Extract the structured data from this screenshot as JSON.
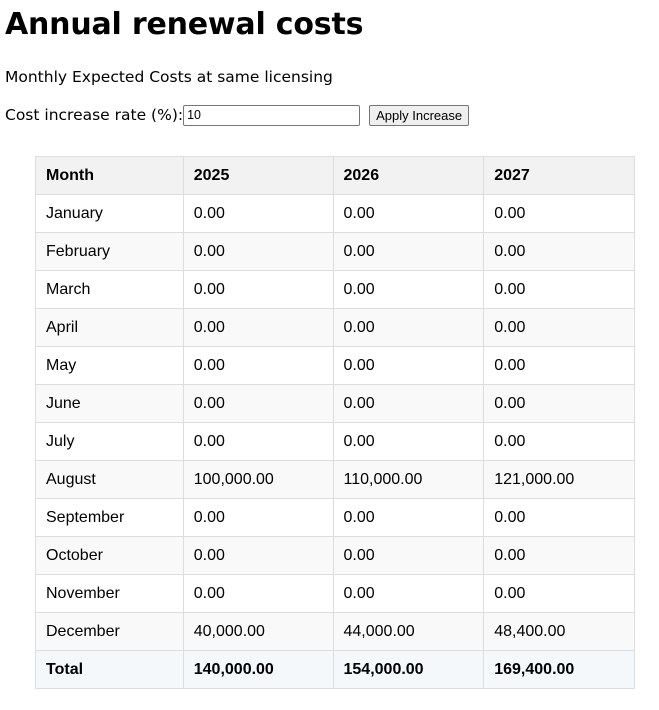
{
  "page": {
    "title": "Annual renewal costs",
    "subtitle": "Monthly Expected Costs at same licensing"
  },
  "controls": {
    "rate_label": "Cost increase rate (%):",
    "rate_value": "10",
    "apply_label": "Apply Increase"
  },
  "table": {
    "headers": [
      "Month",
      "2025",
      "2026",
      "2027"
    ],
    "rows": [
      [
        "January",
        "0.00",
        "0.00",
        "0.00"
      ],
      [
        "February",
        "0.00",
        "0.00",
        "0.00"
      ],
      [
        "March",
        "0.00",
        "0.00",
        "0.00"
      ],
      [
        "April",
        "0.00",
        "0.00",
        "0.00"
      ],
      [
        "May",
        "0.00",
        "0.00",
        "0.00"
      ],
      [
        "June",
        "0.00",
        "0.00",
        "0.00"
      ],
      [
        "July",
        "0.00",
        "0.00",
        "0.00"
      ],
      [
        "August",
        "100,000.00",
        "110,000.00",
        "121,000.00"
      ],
      [
        "September",
        "0.00",
        "0.00",
        "0.00"
      ],
      [
        "October",
        "0.00",
        "0.00",
        "0.00"
      ],
      [
        "November",
        "0.00",
        "0.00",
        "0.00"
      ],
      [
        "December",
        "40,000.00",
        "44,000.00",
        "48,400.00"
      ]
    ],
    "total": [
      "Total",
      "140,000.00",
      "154,000.00",
      "169,400.00"
    ]
  }
}
